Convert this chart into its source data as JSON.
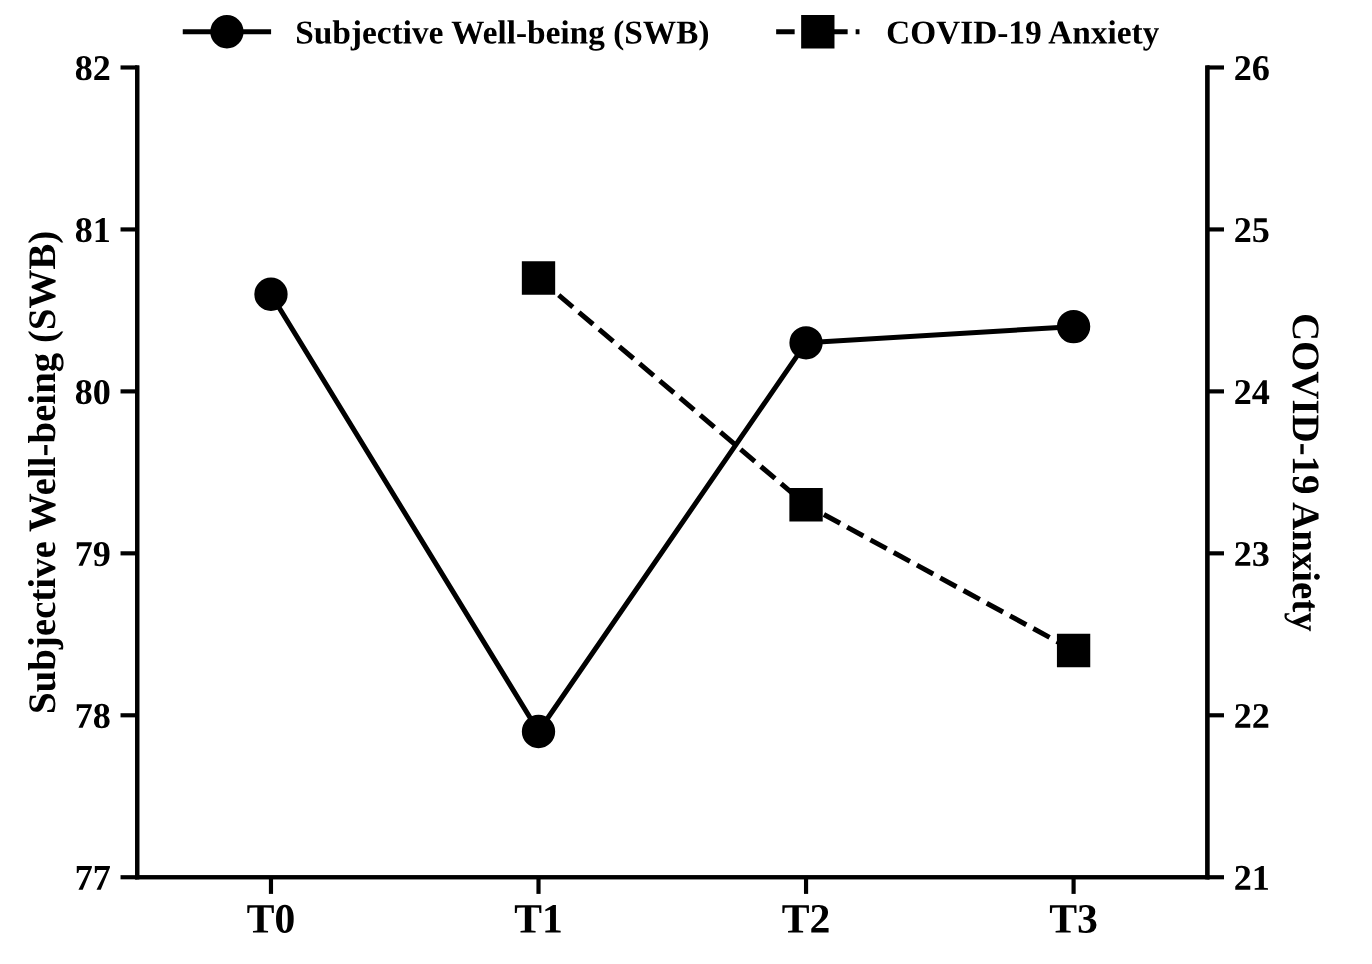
{
  "chart_data": {
    "type": "line",
    "ylabel": "Subjective Well-being (SWB)",
    "y2label": "COVID-19 Anxiety",
    "categories": [
      "T0",
      "T1",
      "T2",
      "T3"
    ],
    "series": [
      {
        "name": "Subjective Well-being (SWB)",
        "color": "#000000",
        "values": [
          80.6,
          77.9,
          80.3,
          80.4
        ],
        "marker": "circle",
        "line_style": "solid"
      },
      {
        "name": "COVID-19 Anxiety",
        "color": "#000000",
        "values": [
          null,
          24.7,
          23.3,
          22.4
        ],
        "marker": "square",
        "line_style": "dashed",
        "axis": "y2"
      }
    ],
    "ylim": [
      77,
      82
    ],
    "yticks": [
      77,
      78,
      79,
      80,
      81,
      82
    ],
    "y2lim": [
      21,
      26
    ],
    "y2ticks": [
      21,
      22,
      23,
      24,
      25,
      26
    ],
    "grid": false,
    "legend": "top"
  }
}
